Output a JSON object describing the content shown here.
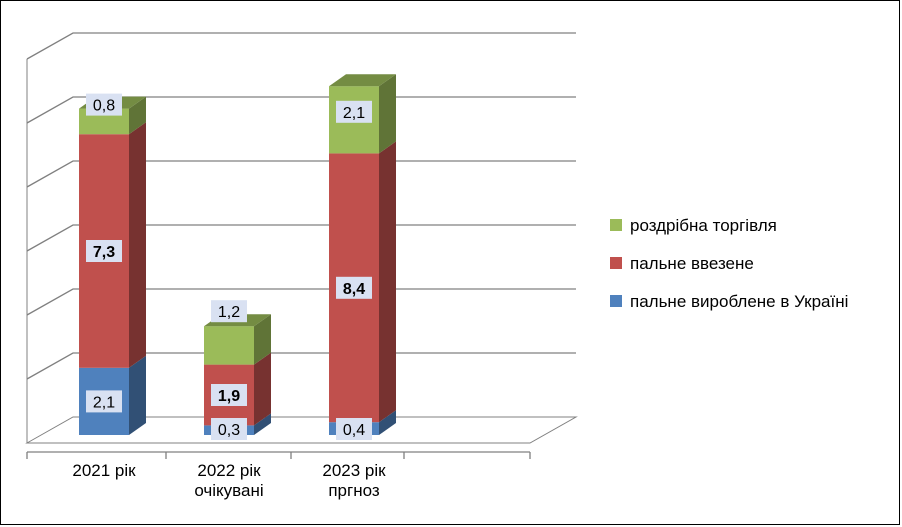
{
  "chart_data": {
    "type": "bar",
    "stacked": true,
    "three_d": true,
    "categories": [
      [
        "2021 рік"
      ],
      [
        "2022 рік",
        "очікувані"
      ],
      [
        "2023 рік",
        "пргноз"
      ]
    ],
    "series": [
      {
        "name": "пальне  вироблене в Україні",
        "color": "#4F81BD",
        "values": [
          2.1,
          0.3,
          0.4
        ],
        "labels": [
          "2,1",
          "0,3",
          "0,4"
        ],
        "bold": false
      },
      {
        "name": "пальне ввезене",
        "color": "#C0504D",
        "values": [
          7.3,
          1.9,
          8.4
        ],
        "labels": [
          "7,3",
          "1,9",
          "8,4"
        ],
        "bold": true
      },
      {
        "name": "роздрібна торгівля",
        "color": "#9BBB59",
        "values": [
          0.8,
          1.2,
          2.1
        ],
        "labels": [
          "0,8",
          "1,2",
          "2,1"
        ],
        "bold": false
      }
    ],
    "ylim": [
      0,
      12
    ],
    "gridlines": 6,
    "grid": true,
    "legend": "right"
  }
}
